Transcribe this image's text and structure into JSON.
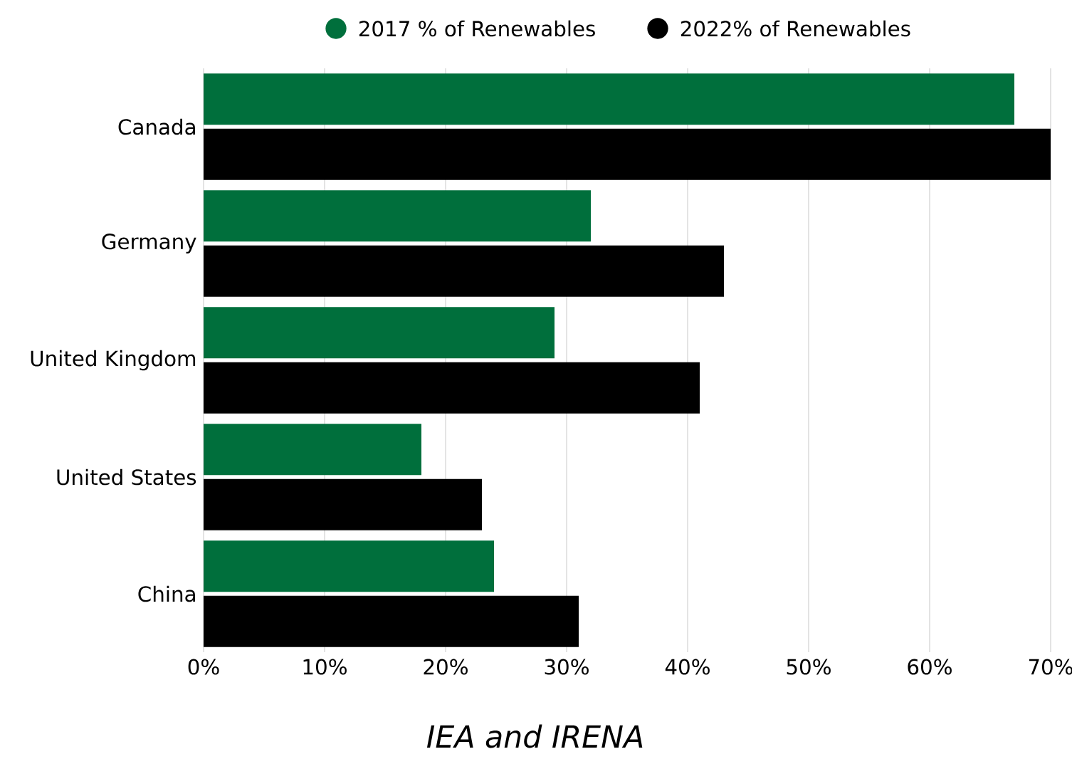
{
  "chart_data": {
    "type": "bar",
    "orientation": "horizontal",
    "categories": [
      "Canada",
      "Germany",
      "United Kingdom",
      "United States",
      "China"
    ],
    "series": [
      {
        "name": "2017 % of Renewables",
        "color": "#006f3c",
        "values": [
          67,
          32,
          29,
          18,
          24
        ]
      },
      {
        "name": "2022% of Renewables",
        "color": "#000000",
        "values": [
          70,
          43,
          41,
          23,
          31
        ]
      }
    ],
    "xlim": [
      0,
      70
    ],
    "xticks": [
      {
        "value": 0,
        "label": "0%"
      },
      {
        "value": 10,
        "label": "10%"
      },
      {
        "value": 20,
        "label": "20%"
      },
      {
        "value": 30,
        "label": "30%"
      },
      {
        "value": 40,
        "label": "40%"
      },
      {
        "value": 50,
        "label": "50%"
      },
      {
        "value": 60,
        "label": "60%"
      },
      {
        "value": 70,
        "label": "70%"
      }
    ],
    "grid": "x",
    "legend": "top",
    "marker": "circle",
    "annotations": [
      "IEA and IRENA"
    ]
  }
}
